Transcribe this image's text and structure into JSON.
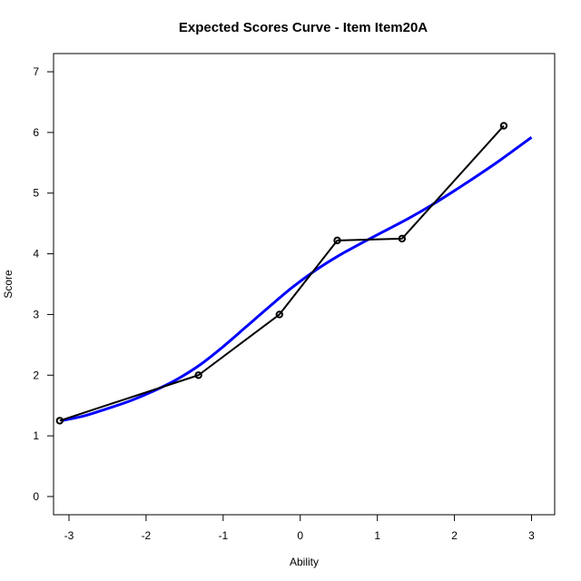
{
  "chart_data": {
    "type": "line",
    "title": "Expected Scores Curve - Item  Item20A",
    "xlabel": "Ability",
    "ylabel": "Score",
    "xlim": [
      -3.2,
      3.3
    ],
    "ylim": [
      -0.3,
      7.3
    ],
    "x_ticks": [
      -3,
      -2,
      -1,
      0,
      1,
      2,
      3
    ],
    "y_ticks": [
      0,
      1,
      2,
      3,
      4,
      5,
      6,
      7
    ],
    "grid": false,
    "legend": "none",
    "series": [
      {
        "style": "solid-thick",
        "color": "#0000ff",
        "x": [
          -3.1,
          -2.8,
          -2.5,
          -2.2,
          -1.9,
          -1.6,
          -1.3,
          -1.0,
          -0.7,
          -0.4,
          -0.1,
          0.2,
          0.5,
          0.8,
          1.1,
          1.4,
          1.7,
          2.0,
          2.3,
          2.6,
          3.0
        ],
        "y": [
          1.25,
          1.33,
          1.45,
          1.58,
          1.74,
          1.93,
          2.17,
          2.47,
          2.8,
          3.13,
          3.45,
          3.73,
          3.97,
          4.18,
          4.38,
          4.58,
          4.8,
          5.04,
          5.29,
          5.55,
          5.92
        ]
      },
      {
        "style": "line-points",
        "color": "#000000",
        "x": [
          -3.12,
          -1.32,
          -0.27,
          0.48,
          1.32,
          2.64
        ],
        "y": [
          1.25,
          2.0,
          3.0,
          4.22,
          4.25,
          6.11
        ]
      }
    ]
  }
}
